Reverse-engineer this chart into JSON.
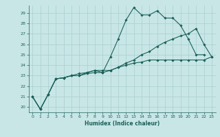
{
  "title": "",
  "xlabel": "Humidex (Indice chaleur)",
  "background_color": "#c8e6e6",
  "grid_color": "#a8cece",
  "line_color": "#1a6058",
  "xlim": [
    -0.5,
    23.5
  ],
  "ylim": [
    19.5,
    29.7
  ],
  "xticks": [
    0,
    1,
    2,
    3,
    4,
    5,
    6,
    7,
    8,
    9,
    10,
    11,
    12,
    13,
    14,
    15,
    16,
    17,
    18,
    19,
    20,
    21,
    22,
    23
  ],
  "yticks": [
    20,
    21,
    22,
    23,
    24,
    25,
    26,
    27,
    28,
    29
  ],
  "series": [
    [
      21.0,
      19.8,
      21.2,
      22.7,
      22.8,
      23.0,
      23.0,
      23.2,
      23.3,
      23.3,
      24.8,
      26.5,
      28.3,
      29.5,
      28.8,
      28.8,
      29.2,
      28.5,
      28.5,
      27.8,
      26.5,
      25.0,
      25.0
    ],
    [
      21.0,
      19.8,
      21.2,
      22.7,
      22.8,
      23.0,
      23.0,
      23.3,
      23.5,
      23.3,
      23.5,
      23.8,
      24.2,
      24.5,
      25.0,
      25.3,
      25.8,
      26.2,
      26.5,
      26.8,
      27.0,
      27.5,
      26.0,
      24.8
    ],
    [
      21.0,
      19.8,
      21.2,
      22.7,
      22.8,
      23.0,
      23.2,
      23.3,
      23.5,
      23.5,
      23.5,
      23.8,
      24.0,
      24.2,
      24.3,
      24.5,
      24.5,
      24.5,
      24.5,
      24.5,
      24.5,
      24.5,
      24.5,
      24.8
    ]
  ],
  "series_x": [
    [
      0,
      1,
      2,
      3,
      4,
      5,
      6,
      7,
      8,
      9,
      10,
      11,
      12,
      13,
      14,
      15,
      16,
      17,
      18,
      19,
      20,
      21,
      22
    ],
    [
      0,
      1,
      2,
      3,
      4,
      5,
      6,
      7,
      8,
      9,
      10,
      11,
      12,
      13,
      14,
      15,
      16,
      17,
      18,
      19,
      20,
      21,
      22,
      23
    ],
    [
      0,
      1,
      2,
      3,
      4,
      5,
      6,
      7,
      8,
      9,
      10,
      11,
      12,
      13,
      14,
      15,
      16,
      17,
      18,
      19,
      20,
      21,
      22,
      23
    ]
  ]
}
